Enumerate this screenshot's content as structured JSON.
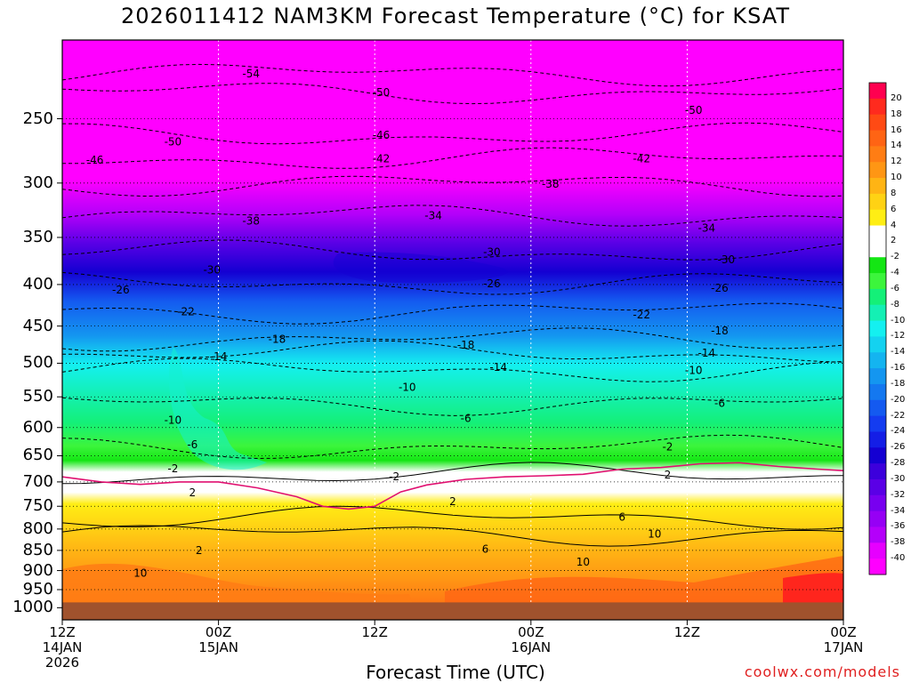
{
  "title": "2026011412 NAM3KM Forecast Temperature (°C) for KSAT",
  "xlabel": "Forecast Time (UTC)",
  "credit": "coolwx.com/models",
  "chart_data": {
    "type": "heatmap",
    "title": "2026011412 NAM3KM Forecast Temperature (°C) for KSAT",
    "xlabel": "Forecast Time (UTC)",
    "ylabel": "",
    "x_axis": {
      "range_hours": [
        0,
        60
      ]
    },
    "y_axis": {
      "scale": "log-pressure",
      "range_hPa": [
        1035,
        200
      ],
      "inverted": true
    },
    "x_ticks": [
      {
        "hour": 0,
        "lines": [
          "12Z",
          "14JAN",
          "2026"
        ]
      },
      {
        "hour": 12,
        "lines": [
          "00Z",
          "15JAN"
        ]
      },
      {
        "hour": 24,
        "lines": [
          "12Z"
        ]
      },
      {
        "hour": 36,
        "lines": [
          "00Z",
          "16JAN"
        ]
      },
      {
        "hour": 48,
        "lines": [
          "12Z"
        ]
      },
      {
        "hour": 60,
        "lines": [
          "00Z",
          "17JAN"
        ]
      }
    ],
    "y_ticks": [
      250,
      300,
      350,
      400,
      450,
      500,
      550,
      600,
      650,
      700,
      750,
      800,
      850,
      900,
      950,
      1000
    ],
    "surface_pressure_hPa": 985,
    "grid": true,
    "colorbar": {
      "position": "right",
      "ticks": [
        "20",
        "18",
        "16",
        "14",
        "12",
        "10",
        "8",
        "6",
        "4",
        "2",
        "-2",
        "-4",
        "-6",
        "-8",
        "-10",
        "-12",
        "-14",
        "-16",
        "-18",
        "-20",
        "-22",
        "-24",
        "-26",
        "-28",
        "-30",
        "-32",
        "-34",
        "-36",
        "-38",
        "-40"
      ],
      "colors": [
        "#ff0050",
        "#ff2a1e",
        "#ff4a14",
        "#ff6414",
        "#ff7d14",
        "#ff9614",
        "#ffb414",
        "#ffd214",
        "#ffee14",
        "#ffffff",
        "#ffffff",
        "#14e614",
        "#3cf53c",
        "#14f078",
        "#14f0b4",
        "#14f0f0",
        "#14d2f0",
        "#14b4f0",
        "#1496f0",
        "#1478f0",
        "#145af0",
        "#143cf0",
        "#141ee6",
        "#1400d2",
        "#3c00dc",
        "#5a00e6",
        "#7800f0",
        "#9600f5",
        "#b400fa",
        "#e600ff",
        "#ff00ff"
      ]
    },
    "contour_interval": 4,
    "freezing_line": {
      "value": 0,
      "color": "#e01070",
      "points": [
        [
          0,
          690
        ],
        [
          3,
          700
        ],
        [
          6,
          705
        ],
        [
          9,
          700
        ],
        [
          12,
          700
        ],
        [
          15,
          712
        ],
        [
          18,
          730
        ],
        [
          20,
          750
        ],
        [
          22,
          756
        ],
        [
          24,
          750
        ],
        [
          26,
          720
        ],
        [
          28,
          706
        ],
        [
          31,
          695
        ],
        [
          34,
          690
        ],
        [
          37,
          688
        ],
        [
          40,
          685
        ],
        [
          43,
          675
        ],
        [
          46,
          672
        ],
        [
          49,
          665
        ],
        [
          52,
          663
        ],
        [
          55,
          670
        ],
        [
          58,
          675
        ],
        [
          60,
          678
        ]
      ]
    },
    "contour_labels": [
      {
        "value": "-54",
        "hour": 14.5,
        "p": 220
      },
      {
        "value": "-50",
        "hour": 24.5,
        "p": 232
      },
      {
        "value": "-50",
        "hour": 48.5,
        "p": 244
      },
      {
        "value": "-50",
        "hour": 8.5,
        "p": 267
      },
      {
        "value": "-46",
        "hour": 24.5,
        "p": 262
      },
      {
        "value": "-46",
        "hour": 2.5,
        "p": 281
      },
      {
        "value": "-42",
        "hour": 24.5,
        "p": 280
      },
      {
        "value": "-42",
        "hour": 44.5,
        "p": 280
      },
      {
        "value": "-38",
        "hour": 37.5,
        "p": 301
      },
      {
        "value": "-38",
        "hour": 14.5,
        "p": 334
      },
      {
        "value": "-34",
        "hour": 28.5,
        "p": 329
      },
      {
        "value": "-34",
        "hour": 49.5,
        "p": 341
      },
      {
        "value": "-30",
        "hour": 33,
        "p": 365
      },
      {
        "value": "-30",
        "hour": 51,
        "p": 373
      },
      {
        "value": "-30",
        "hour": 11.5,
        "p": 384
      },
      {
        "value": "-26",
        "hour": 33,
        "p": 399
      },
      {
        "value": "-26",
        "hour": 50.5,
        "p": 404
      },
      {
        "value": "-26",
        "hour": 4.5,
        "p": 406
      },
      {
        "value": "-22",
        "hour": 9.5,
        "p": 432
      },
      {
        "value": "-22",
        "hour": 44.5,
        "p": 436
      },
      {
        "value": "-18",
        "hour": 16.5,
        "p": 467
      },
      {
        "value": "-18",
        "hour": 50.5,
        "p": 456
      },
      {
        "value": "-18",
        "hour": 31,
        "p": 475
      },
      {
        "value": "-14",
        "hour": 49.5,
        "p": 486
      },
      {
        "value": "-14",
        "hour": 12,
        "p": 491
      },
      {
        "value": "-14",
        "hour": 33.5,
        "p": 506
      },
      {
        "value": "-10",
        "hour": 48.5,
        "p": 510
      },
      {
        "value": "-10",
        "hour": 26.5,
        "p": 535
      },
      {
        "value": "-10",
        "hour": 8.5,
        "p": 588
      },
      {
        "value": "-6",
        "hour": 50.5,
        "p": 560
      },
      {
        "value": "-6",
        "hour": 31,
        "p": 585
      },
      {
        "value": "-6",
        "hour": 10,
        "p": 630
      },
      {
        "value": "-2",
        "hour": 46.5,
        "p": 634
      },
      {
        "value": "-2",
        "hour": 8.5,
        "p": 674
      },
      {
        "value": "-2",
        "hour": 25.5,
        "p": 690
      },
      {
        "value": "2",
        "hour": 46.5,
        "p": 686
      },
      {
        "value": "2",
        "hour": 10,
        "p": 722
      },
      {
        "value": "2",
        "hour": 30,
        "p": 740
      },
      {
        "value": "6",
        "hour": 43,
        "p": 774
      },
      {
        "value": "6",
        "hour": 32.5,
        "p": 847
      },
      {
        "value": "10",
        "hour": 45.5,
        "p": 811
      },
      {
        "value": "10",
        "hour": 40,
        "p": 879
      },
      {
        "value": "10",
        "hour": 6,
        "p": 907
      },
      {
        "value": "2",
        "hour": 10.5,
        "p": 850
      }
    ]
  }
}
